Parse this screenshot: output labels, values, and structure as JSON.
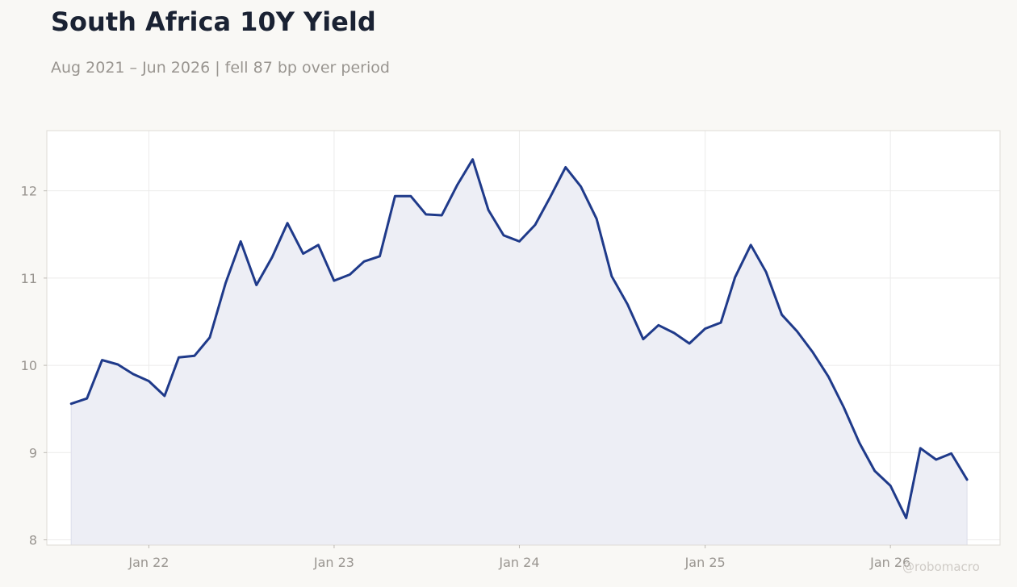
{
  "header": {
    "title": "South Africa 10Y Yield",
    "subtitle": "Aug 2021 – Jun 2026 | fell 87 bp over period"
  },
  "watermark": "@robomacro",
  "colors": {
    "line": "#1f3a8a",
    "area_fill": "#edeef5",
    "plot_background": "#ffffff",
    "page_background": "#f9f8f5",
    "grid": "#ecebea",
    "tick_text": "#999590"
  },
  "chart_data": {
    "type": "area",
    "title": "South Africa 10Y Yield",
    "xlabel": "",
    "ylabel": "",
    "ylim": [
      7.94,
      12.69
    ],
    "xlim": [
      "2021-06-14",
      "2026-08-05"
    ],
    "yticks": [
      8,
      9,
      10,
      11,
      12
    ],
    "xticks": [
      {
        "label": "Jan 22",
        "date": "2022-01-01"
      },
      {
        "label": "Jan 23",
        "date": "2023-01-01"
      },
      {
        "label": "Jan 24",
        "date": "2024-01-01"
      },
      {
        "label": "Jan 25",
        "date": "2025-01-01"
      },
      {
        "label": "Jan 26",
        "date": "2026-01-01"
      }
    ],
    "grid": true,
    "legend": "none",
    "series": [
      {
        "x": [
          "2021-08-01",
          "2021-09-01",
          "2021-10-01",
          "2021-11-01",
          "2021-12-01",
          "2022-01-01",
          "2022-02-01",
          "2022-03-01",
          "2022-04-01",
          "2022-05-01",
          "2022-06-01",
          "2022-07-01",
          "2022-08-01",
          "2022-09-01",
          "2022-10-01",
          "2022-11-01",
          "2022-12-01",
          "2023-01-01",
          "2023-02-01",
          "2023-03-01",
          "2023-04-01",
          "2023-05-01",
          "2023-06-01",
          "2023-07-01",
          "2023-08-01",
          "2023-09-01",
          "2023-10-01",
          "2023-11-01",
          "2023-12-01",
          "2024-01-01",
          "2024-02-01",
          "2024-03-01",
          "2024-04-01",
          "2024-05-01",
          "2024-06-01",
          "2024-07-01",
          "2024-08-01",
          "2024-09-01",
          "2024-10-01",
          "2024-11-01",
          "2024-12-01",
          "2025-01-01",
          "2025-02-01",
          "2025-03-01",
          "2025-04-01",
          "2025-05-01",
          "2025-06-01",
          "2025-07-01",
          "2025-08-01",
          "2025-09-01",
          "2025-10-01",
          "2025-11-01",
          "2025-12-01",
          "2026-01-01",
          "2026-02-01",
          "2026-03-01",
          "2026-04-01",
          "2026-05-01",
          "2026-06-01"
        ],
        "values": [
          9.56,
          9.62,
          10.06,
          10.01,
          9.9,
          9.82,
          9.65,
          10.09,
          10.11,
          10.32,
          10.94,
          11.42,
          10.92,
          11.24,
          11.63,
          11.28,
          11.38,
          10.97,
          11.04,
          11.19,
          11.25,
          11.94,
          11.94,
          11.73,
          11.72,
          12.07,
          12.36,
          11.78,
          11.49,
          11.42,
          11.61,
          11.92,
          12.27,
          12.05,
          11.68,
          11.02,
          10.7,
          10.3,
          10.46,
          10.37,
          10.25,
          10.42,
          10.49,
          11.01,
          11.38,
          11.07,
          10.58,
          10.39,
          10.15,
          9.87,
          9.52,
          9.11,
          8.79,
          8.62,
          8.25,
          9.05,
          8.92,
          8.99,
          8.69
        ]
      }
    ]
  }
}
